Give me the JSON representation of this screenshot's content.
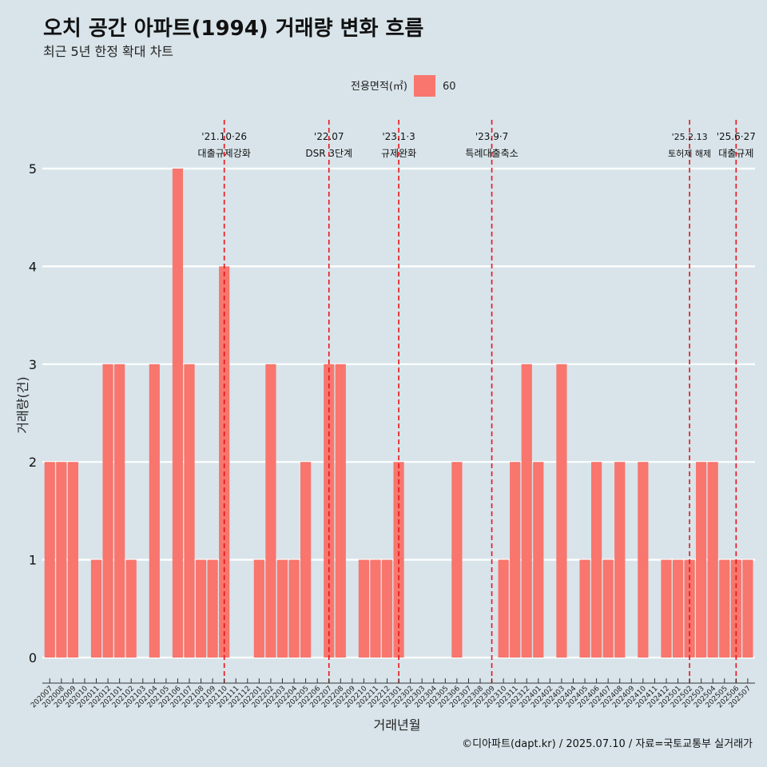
{
  "chart_data": {
    "type": "bar",
    "title": "오치 공간 아파트(1994) 거래량 변화 흐름",
    "subtitle": "최근 5년 한정 확대 차트",
    "xlabel": "거래년월",
    "ylabel": "거래량(건)",
    "legend": {
      "title": "전용면적(㎡)",
      "position": "top",
      "entries": [
        {
          "name": "60",
          "color": "#f8766d"
        }
      ]
    },
    "ylim": [
      0,
      5
    ],
    "yticks": [
      0,
      1,
      2,
      3,
      4,
      5
    ],
    "grid": true,
    "categories": [
      "202007",
      "202008",
      "202009",
      "202010",
      "202011",
      "202012",
      "202101",
      "202102",
      "202103",
      "202104",
      "202105",
      "202106",
      "202107",
      "202108",
      "202109",
      "202110",
      "202111",
      "202112",
      "202201",
      "202202",
      "202203",
      "202204",
      "202205",
      "202206",
      "202207",
      "202208",
      "202209",
      "202210",
      "202211",
      "202212",
      "202301",
      "202302",
      "202303",
      "202304",
      "202305",
      "202306",
      "202307",
      "202308",
      "202309",
      "202310",
      "202311",
      "202312",
      "202401",
      "202402",
      "202403",
      "202404",
      "202405",
      "202406",
      "202407",
      "202408",
      "202409",
      "202410",
      "202411",
      "202412",
      "202501",
      "202502",
      "202503",
      "202504",
      "202505",
      "202506",
      "202507"
    ],
    "series": [
      {
        "name": "60",
        "color": "#f8766d",
        "values": [
          2,
          2,
          2,
          0,
          1,
          3,
          3,
          1,
          0,
          3,
          0,
          5,
          3,
          1,
          1,
          4,
          0,
          0,
          1,
          3,
          1,
          1,
          2,
          0,
          3,
          3,
          0,
          1,
          1,
          1,
          2,
          0,
          0,
          0,
          0,
          2,
          0,
          0,
          0,
          1,
          2,
          3,
          2,
          0,
          3,
          0,
          1,
          2,
          1,
          2,
          0,
          2,
          0,
          1,
          1,
          1,
          2,
          2,
          1,
          1,
          1
        ]
      }
    ],
    "annotations": [
      {
        "category": "202110",
        "date": "'21.10·26",
        "label": "대출규제강화"
      },
      {
        "category": "202207",
        "date": "'22.07",
        "label": "DSR 3단계"
      },
      {
        "category": "202301",
        "date": "'23.1·3",
        "label": "규제완화"
      },
      {
        "category": "202309",
        "date": "'23.9·7",
        "label": "특례대출축소"
      },
      {
        "category": "202502",
        "date": "'25.2.13",
        "label": "토허제 해제"
      },
      {
        "category": "202506",
        "date": "'25.6·27",
        "label": "대출규제"
      }
    ],
    "caption": "©디아파트(dapt.kr) / 2025.07.10 / 자료=국토교통부 실거래가"
  },
  "colors": {
    "background": "#d8e4ea",
    "bar": "#f8766d",
    "gridline": "#ffffff",
    "event_line": "#e8141a"
  }
}
